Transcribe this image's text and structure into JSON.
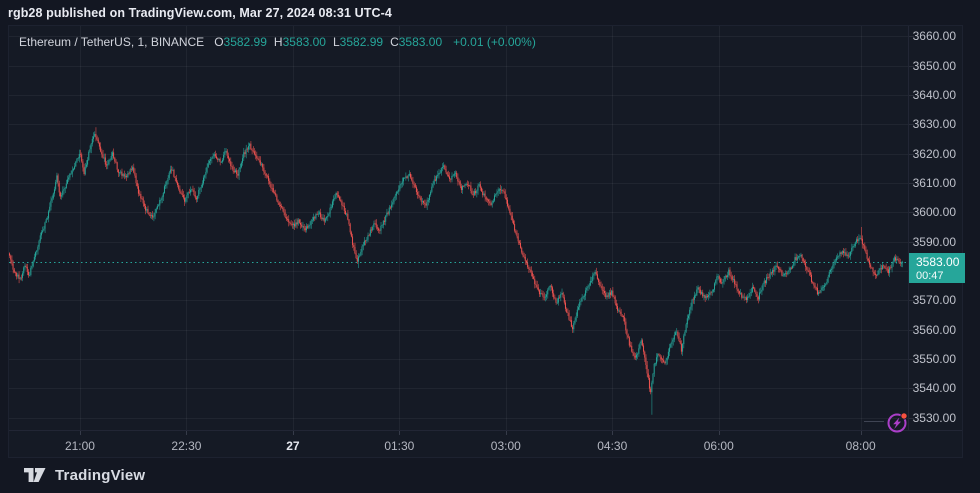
{
  "topbar": {
    "text": "rgb28 published on TradingView.com, Mar 27, 2024 08:31 UTC-4"
  },
  "legend": {
    "symbol": "Ethereum / TetherUS, 1, BINANCE",
    "o_label": "O",
    "o": "3582.99",
    "h_label": "H",
    "h": "3583.00",
    "l_label": "L",
    "l": "3582.99",
    "c_label": "C",
    "c": "3583.00",
    "change": "+0.01 (+0.00%)"
  },
  "price_axis": {
    "badge": {
      "price": "3583.00",
      "countdown": "00:47"
    }
  },
  "footer": {
    "brand": "TradingView"
  },
  "colors": {
    "up": "#26a69a",
    "down": "#ef5350",
    "grid": "rgba(255,255,255,0.05)",
    "price_line": "#26a69a",
    "badge_bg": "#26a69a",
    "flash_purple": "#ab3fc9",
    "flash_dot": "#f7513f"
  },
  "chart_data": {
    "type": "candlestick",
    "title": "Ethereum / TetherUS, 1, BINANCE",
    "exchange": "BINANCE",
    "timeframe_minutes": 1,
    "current_price": 3583.0,
    "last_candle": {
      "open": 3582.99,
      "high": 3583.0,
      "low": 3582.99,
      "close": 3583.0,
      "change": "+0.01 (+0.00%)"
    },
    "visible_range": {
      "start_time": "20:00",
      "end_time": "08:31",
      "total_minutes": 760,
      "price_top": 3663.5,
      "price_bottom": 3525.8
    },
    "y_ticks": [
      3530,
      3540,
      3550,
      3560,
      3570,
      3580,
      3590,
      3600,
      3610,
      3620,
      3630,
      3640,
      3650,
      3660
    ],
    "x_ticks": [
      {
        "t": 60,
        "label": "21:00",
        "bold": false
      },
      {
        "t": 150,
        "label": "22:30",
        "bold": false
      },
      {
        "t": 240,
        "label": "27",
        "bold": true
      },
      {
        "t": 330,
        "label": "01:30",
        "bold": false
      },
      {
        "t": 420,
        "label": "03:00",
        "bold": false
      },
      {
        "t": 510,
        "label": "04:30",
        "bold": false
      },
      {
        "t": 600,
        "label": "06:00",
        "bold": false
      },
      {
        "t": 720,
        "label": "08:00",
        "bold": false
      }
    ],
    "price_path": [
      [
        0,
        3586
      ],
      [
        5,
        3580
      ],
      [
        10,
        3577
      ],
      [
        14,
        3582
      ],
      [
        17,
        3578
      ],
      [
        21,
        3583
      ],
      [
        27,
        3592
      ],
      [
        32,
        3597
      ],
      [
        37,
        3605
      ],
      [
        41,
        3612
      ],
      [
        44,
        3605
      ],
      [
        51,
        3612
      ],
      [
        57,
        3617
      ],
      [
        61,
        3620
      ],
      [
        64,
        3613
      ],
      [
        69,
        3622
      ],
      [
        73,
        3627
      ],
      [
        78,
        3621
      ],
      [
        83,
        3616
      ],
      [
        88,
        3620
      ],
      [
        93,
        3614
      ],
      [
        100,
        3612
      ],
      [
        105,
        3616
      ],
      [
        110,
        3607
      ],
      [
        116,
        3601
      ],
      [
        122,
        3598
      ],
      [
        127,
        3603
      ],
      [
        131,
        3607
      ],
      [
        135,
        3612
      ],
      [
        138,
        3615
      ],
      [
        143,
        3609
      ],
      [
        149,
        3604
      ],
      [
        154,
        3608
      ],
      [
        159,
        3605
      ],
      [
        164,
        3610
      ],
      [
        169,
        3616
      ],
      [
        174,
        3620
      ],
      [
        179,
        3617
      ],
      [
        184,
        3621
      ],
      [
        189,
        3615
      ],
      [
        194,
        3613
      ],
      [
        199,
        3620
      ],
      [
        204,
        3623
      ],
      [
        209,
        3619
      ],
      [
        214,
        3616
      ],
      [
        219,
        3612
      ],
      [
        224,
        3607
      ],
      [
        230,
        3602
      ],
      [
        235,
        3598
      ],
      [
        240,
        3595
      ],
      [
        245,
        3597
      ],
      [
        250,
        3594
      ],
      [
        255,
        3596
      ],
      [
        262,
        3600
      ],
      [
        267,
        3597
      ],
      [
        272,
        3601
      ],
      [
        277,
        3606
      ],
      [
        282,
        3603
      ],
      [
        287,
        3598
      ],
      [
        291,
        3589
      ],
      [
        295,
        3583
      ],
      [
        299,
        3588
      ],
      [
        304,
        3592
      ],
      [
        309,
        3596
      ],
      [
        314,
        3594
      ],
      [
        321,
        3600
      ],
      [
        327,
        3606
      ],
      [
        334,
        3611
      ],
      [
        339,
        3613
      ],
      [
        344,
        3608
      ],
      [
        349,
        3604
      ],
      [
        353,
        3602
      ],
      [
        358,
        3609
      ],
      [
        363,
        3613
      ],
      [
        368,
        3616
      ],
      [
        373,
        3611
      ],
      [
        378,
        3613
      ],
      [
        383,
        3608
      ],
      [
        388,
        3610
      ],
      [
        393,
        3606
      ],
      [
        398,
        3609
      ],
      [
        403,
        3605
      ],
      [
        408,
        3603
      ],
      [
        413,
        3607
      ],
      [
        418,
        3608
      ],
      [
        423,
        3601
      ],
      [
        428,
        3594
      ],
      [
        433,
        3588
      ],
      [
        438,
        3583
      ],
      [
        443,
        3578
      ],
      [
        448,
        3573
      ],
      [
        453,
        3571
      ],
      [
        458,
        3575
      ],
      [
        463,
        3569
      ],
      [
        468,
        3572
      ],
      [
        473,
        3565
      ],
      [
        477,
        3560
      ],
      [
        482,
        3568
      ],
      [
        487,
        3572
      ],
      [
        492,
        3576
      ],
      [
        496,
        3580
      ],
      [
        500,
        3575
      ],
      [
        505,
        3571
      ],
      [
        510,
        3573
      ],
      [
        515,
        3567
      ],
      [
        520,
        3564
      ],
      [
        525,
        3555
      ],
      [
        530,
        3550
      ],
      [
        535,
        3556
      ],
      [
        539,
        3548
      ],
      [
        543,
        3538
      ],
      [
        546,
        3548
      ],
      [
        550,
        3552
      ],
      [
        555,
        3548
      ],
      [
        560,
        3555
      ],
      [
        565,
        3560
      ],
      [
        569,
        3553
      ],
      [
        573,
        3562
      ],
      [
        578,
        3570
      ],
      [
        583,
        3574
      ],
      [
        589,
        3571
      ],
      [
        595,
        3573
      ],
      [
        599,
        3578
      ],
      [
        604,
        3576
      ],
      [
        609,
        3580
      ],
      [
        614,
        3576
      ],
      [
        619,
        3572
      ],
      [
        624,
        3570
      ],
      [
        629,
        3574
      ],
      [
        634,
        3571
      ],
      [
        639,
        3576
      ],
      [
        644,
        3579
      ],
      [
        650,
        3582
      ],
      [
        655,
        3578
      ],
      [
        660,
        3580
      ],
      [
        665,
        3584
      ],
      [
        670,
        3586
      ],
      [
        675,
        3581
      ],
      [
        680,
        3576
      ],
      [
        685,
        3572
      ],
      [
        690,
        3575
      ],
      [
        695,
        3580
      ],
      [
        700,
        3584
      ],
      [
        705,
        3587
      ],
      [
        710,
        3585
      ],
      [
        715,
        3589
      ],
      [
        720,
        3592
      ],
      [
        725,
        3586
      ],
      [
        729,
        3581
      ],
      [
        734,
        3578
      ],
      [
        739,
        3582
      ],
      [
        744,
        3580
      ],
      [
        749,
        3584
      ],
      [
        755,
        3583
      ]
    ],
    "spikes": [
      {
        "t": 73,
        "high": 3629
      },
      {
        "t": 295,
        "low": 3581
      },
      {
        "t": 543,
        "low": 3531
      },
      {
        "t": 720,
        "high": 3595
      }
    ]
  }
}
